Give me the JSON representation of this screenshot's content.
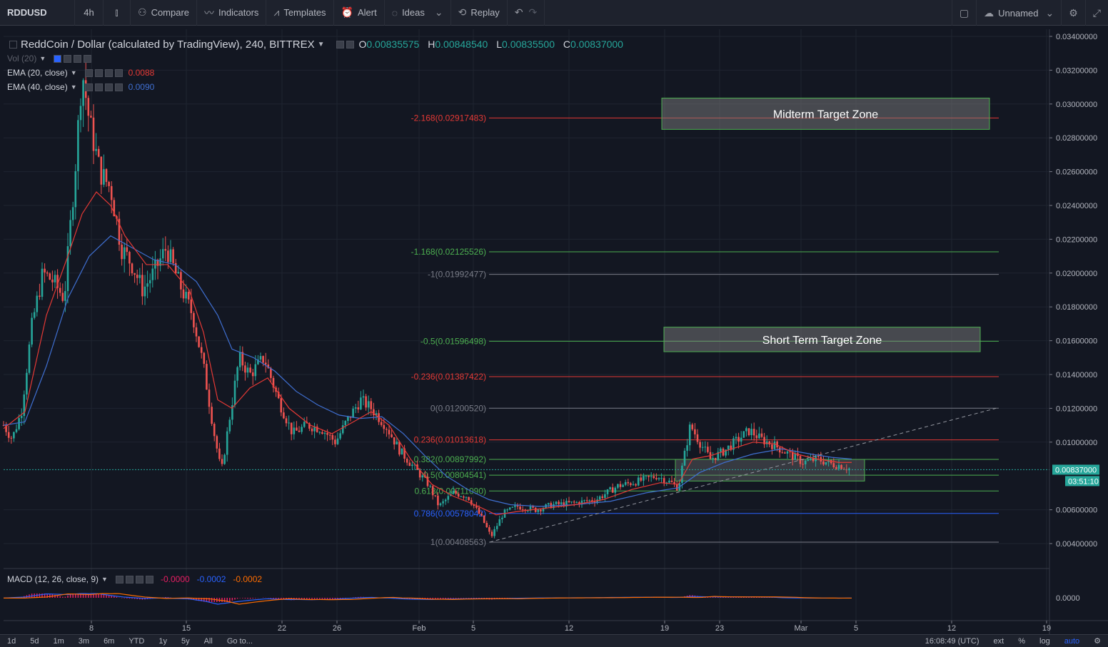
{
  "toolbar": {
    "symbol": "RDDUSD",
    "interval": "4h",
    "compare": "Compare",
    "indicators": "Indicators",
    "templates": "Templates",
    "alert": "Alert",
    "ideas": "Ideas",
    "replay": "Replay",
    "layout_name": "Unnamed"
  },
  "legend": {
    "title": "ReddCoin / Dollar (calculated by TradingView), 240, BITTREX",
    "o_label": "O",
    "o": "0.00835575",
    "h_label": "H",
    "h": "0.00848540",
    "l_label": "L",
    "l": "0.00835500",
    "c_label": "C",
    "c": "0.00837000",
    "vol": "Vol (20)",
    "ema20": "EMA (20, close)",
    "ema20_val": "0.0088",
    "ema40": "EMA (40, close)",
    "ema40_val": "0.0090"
  },
  "macd_legend": {
    "label": "MACD (12, 26, close, 9)",
    "v1": "-0.0000",
    "v2": "-0.0002",
    "v3": "-0.0002"
  },
  "bottom": {
    "ranges": [
      "1d",
      "5d",
      "1m",
      "3m",
      "6m",
      "YTD",
      "1y",
      "5y",
      "All",
      "Go to..."
    ],
    "time": "16:08:49 (UTC)",
    "ext": "ext",
    "pct": "%",
    "log": "log",
    "auto": "auto"
  },
  "colors": {
    "up": "#26a69a",
    "down": "#ef5350",
    "ema20": "#e53935",
    "ema40": "#3f6fd1",
    "fib_red": "#e53935",
    "fib_green": "#4caf50",
    "fib_gray": "#787b86",
    "fib_blue": "#2962ff",
    "zone": "#7b7b7b"
  },
  "chart_data": {
    "type": "candlestick",
    "x_ticks": [
      "8",
      "15",
      "22",
      "26",
      "Feb",
      "5",
      "12",
      "19",
      "23",
      "Mar",
      "5",
      "12",
      "19"
    ],
    "y_ticks": [
      "0.03400000",
      "0.03200000",
      "0.03000000",
      "0.02800000",
      "0.02600000",
      "0.02400000",
      "0.02200000",
      "0.02000000",
      "0.01800000",
      "0.01600000",
      "0.01400000",
      "0.01200000",
      "0.01000000",
      "0.00600000",
      "0.00400000"
    ],
    "y_range": [
      0.0029,
      0.0345
    ],
    "last_price": "0.00837000",
    "countdown": "03:51:10",
    "macd_tick": "0.0000",
    "price_path": [
      [
        0,
        0.011
      ],
      [
        12,
        0.0102
      ],
      [
        25,
        0.0118
      ],
      [
        40,
        0.017
      ],
      [
        55,
        0.02
      ],
      [
        70,
        0.0195
      ],
      [
        85,
        0.0185
      ],
      [
        100,
        0.026
      ],
      [
        110,
        0.032
      ],
      [
        120,
        0.029
      ],
      [
        135,
        0.026
      ],
      [
        150,
        0.025
      ],
      [
        165,
        0.0215
      ],
      [
        180,
        0.0205
      ],
      [
        195,
        0.019
      ],
      [
        210,
        0.02
      ],
      [
        228,
        0.0215
      ],
      [
        245,
        0.0195
      ],
      [
        265,
        0.0175
      ],
      [
        280,
        0.0145
      ],
      [
        295,
        0.0105
      ],
      [
        305,
        0.0082
      ],
      [
        315,
        0.011
      ],
      [
        330,
        0.015
      ],
      [
        345,
        0.014
      ],
      [
        365,
        0.015
      ],
      [
        385,
        0.0125
      ],
      [
        405,
        0.0105
      ],
      [
        425,
        0.011
      ],
      [
        445,
        0.0108
      ],
      [
        465,
        0.01
      ],
      [
        480,
        0.0112
      ],
      [
        500,
        0.0125
      ],
      [
        515,
        0.012
      ],
      [
        535,
        0.011
      ],
      [
        555,
        0.0095
      ],
      [
        575,
        0.0085
      ],
      [
        595,
        0.0075
      ],
      [
        610,
        0.0062
      ],
      [
        630,
        0.007
      ],
      [
        650,
        0.0068
      ],
      [
        670,
        0.0055
      ],
      [
        683,
        0.0044
      ],
      [
        700,
        0.0058
      ],
      [
        720,
        0.0062
      ],
      [
        745,
        0.006
      ],
      [
        770,
        0.0063
      ],
      [
        800,
        0.0064
      ],
      [
        830,
        0.0066
      ],
      [
        860,
        0.0074
      ],
      [
        890,
        0.0077
      ],
      [
        915,
        0.008
      ],
      [
        935,
        0.0076
      ],
      [
        945,
        0.0073
      ],
      [
        955,
        0.0095
      ],
      [
        962,
        0.011
      ],
      [
        975,
        0.01
      ],
      [
        990,
        0.009
      ],
      [
        1010,
        0.0095
      ],
      [
        1030,
        0.0102
      ],
      [
        1045,
        0.0107
      ],
      [
        1060,
        0.0102
      ],
      [
        1080,
        0.0098
      ],
      [
        1100,
        0.0093
      ],
      [
        1120,
        0.0088
      ],
      [
        1140,
        0.009
      ],
      [
        1160,
        0.0087
      ],
      [
        1175,
        0.0086
      ],
      [
        1188,
        0.00837
      ]
    ],
    "ema20_path": [
      [
        0,
        0.0108
      ],
      [
        30,
        0.0118
      ],
      [
        60,
        0.0175
      ],
      [
        90,
        0.021
      ],
      [
        110,
        0.0235
      ],
      [
        130,
        0.0248
      ],
      [
        150,
        0.024
      ],
      [
        170,
        0.0222
      ],
      [
        200,
        0.0205
      ],
      [
        230,
        0.0205
      ],
      [
        260,
        0.019
      ],
      [
        280,
        0.0165
      ],
      [
        300,
        0.0125
      ],
      [
        320,
        0.012
      ],
      [
        345,
        0.0132
      ],
      [
        370,
        0.0138
      ],
      [
        400,
        0.012
      ],
      [
        430,
        0.011
      ],
      [
        460,
        0.0105
      ],
      [
        490,
        0.0112
      ],
      [
        515,
        0.0118
      ],
      [
        540,
        0.011
      ],
      [
        570,
        0.009
      ],
      [
        600,
        0.0075
      ],
      [
        630,
        0.0068
      ],
      [
        660,
        0.0063
      ],
      [
        690,
        0.0057
      ],
      [
        720,
        0.0059
      ],
      [
        760,
        0.0061
      ],
      [
        800,
        0.0063
      ],
      [
        840,
        0.0066
      ],
      [
        880,
        0.0072
      ],
      [
        920,
        0.0076
      ],
      [
        945,
        0.0075
      ],
      [
        965,
        0.009
      ],
      [
        990,
        0.0092
      ],
      [
        1020,
        0.0096
      ],
      [
        1050,
        0.01
      ],
      [
        1080,
        0.0099
      ],
      [
        1110,
        0.0093
      ],
      [
        1140,
        0.009
      ],
      [
        1170,
        0.0088
      ],
      [
        1188,
        0.0088
      ]
    ],
    "ema40_path": [
      [
        0,
        0.011
      ],
      [
        30,
        0.0112
      ],
      [
        60,
        0.0145
      ],
      [
        90,
        0.0185
      ],
      [
        120,
        0.021
      ],
      [
        150,
        0.0222
      ],
      [
        180,
        0.0215
      ],
      [
        210,
        0.0208
      ],
      [
        240,
        0.0205
      ],
      [
        270,
        0.0195
      ],
      [
        300,
        0.0175
      ],
      [
        320,
        0.0155
      ],
      [
        350,
        0.015
      ],
      [
        380,
        0.0142
      ],
      [
        410,
        0.013
      ],
      [
        440,
        0.0122
      ],
      [
        470,
        0.0116
      ],
      [
        500,
        0.0114
      ],
      [
        530,
        0.0115
      ],
      [
        560,
        0.0105
      ],
      [
        590,
        0.0092
      ],
      [
        620,
        0.008
      ],
      [
        650,
        0.0072
      ],
      [
        680,
        0.0066
      ],
      [
        710,
        0.0063
      ],
      [
        750,
        0.0062
      ],
      [
        800,
        0.0063
      ],
      [
        850,
        0.0065
      ],
      [
        900,
        0.007
      ],
      [
        945,
        0.0073
      ],
      [
        975,
        0.0082
      ],
      [
        1010,
        0.0088
      ],
      [
        1050,
        0.0093
      ],
      [
        1090,
        0.0096
      ],
      [
        1130,
        0.0093
      ],
      [
        1160,
        0.0091
      ],
      [
        1188,
        0.009
      ]
    ],
    "fib_levels": [
      {
        "label": "-2.168(0.02917483)",
        "value": 0.02917483,
        "color": "red"
      },
      {
        "label": "-1.168(0.02125526)",
        "value": 0.02125526,
        "color": "green"
      },
      {
        "label": "-1(0.01992477)",
        "value": 0.01992477,
        "color": "gray"
      },
      {
        "label": "-0.5(0.01596498)",
        "value": 0.01596498,
        "color": "green"
      },
      {
        "label": "-0.236(0.01387422)",
        "value": 0.01387422,
        "color": "red"
      },
      {
        "label": "0(0.01200520)",
        "value": 0.0120052,
        "color": "gray"
      },
      {
        "label": "0.236(0.01013618)",
        "value": 0.01013618,
        "color": "red"
      },
      {
        "label": "0.382(0.00897992)",
        "value": 0.00897992,
        "color": "green"
      },
      {
        "label": "0.5(0.00804541)",
        "value": 0.00804541,
        "color": "green"
      },
      {
        "label": "0.618(0.00711090)",
        "value": 0.0071109,
        "color": "green"
      },
      {
        "label": "0.786(0.00578042)",
        "value": 0.00578042,
        "color": "blue"
      },
      {
        "label": "1(0.00408563)",
        "value": 0.00408563,
        "color": "gray"
      }
    ],
    "zones": [
      {
        "label": "Midterm Target Zone",
        "top": 0.03035,
        "bottom": 0.0285
      },
      {
        "label": "Short Term Target Zone",
        "top": 0.0168,
        "bottom": 0.01535
      }
    ],
    "consolidation_zone": {
      "top": 0.00897992,
      "bottom": 0.0077
    },
    "trendline": {
      "from": [
        683,
        0.00408563
      ],
      "to": [
        1395,
        0.012
      ]
    }
  }
}
